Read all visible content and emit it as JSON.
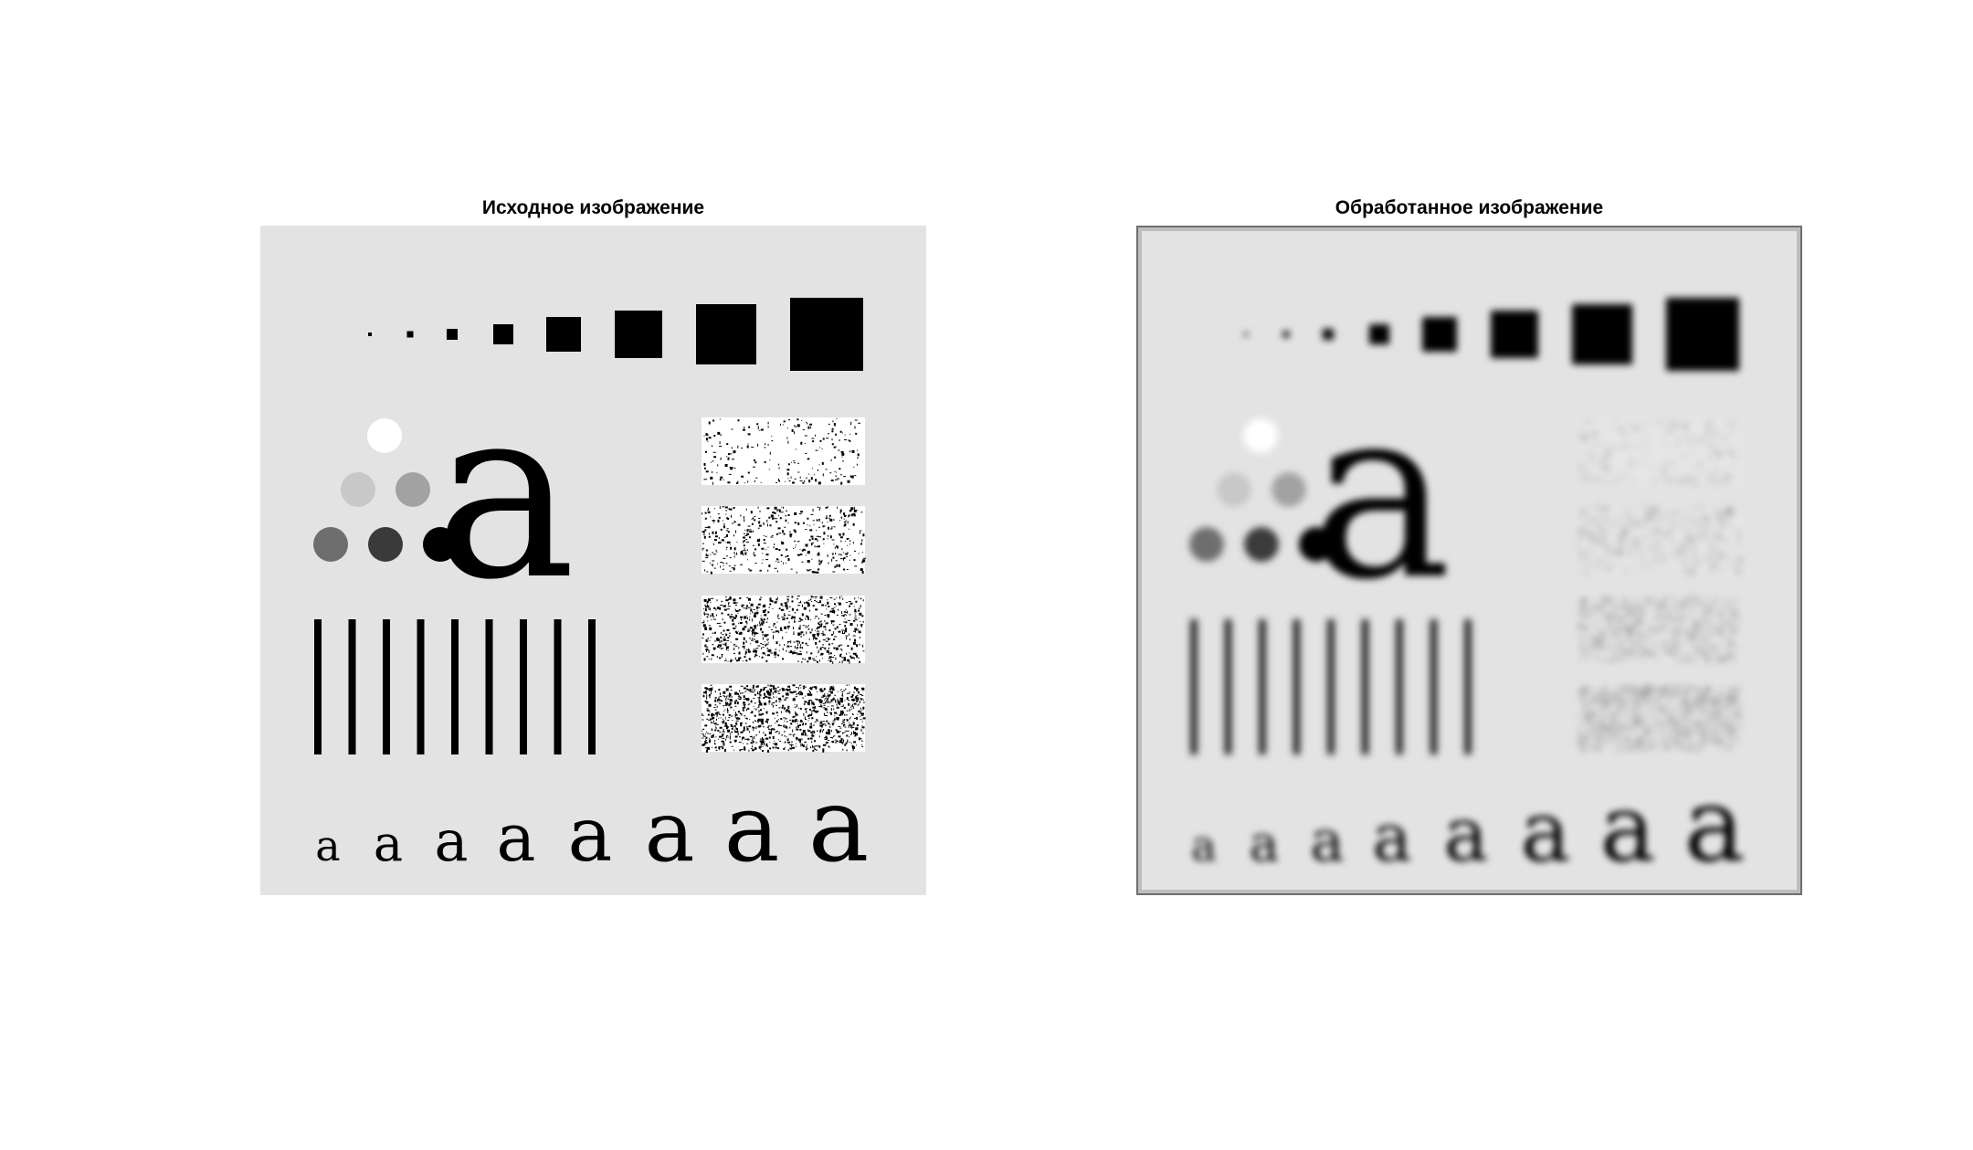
{
  "figure": {
    "panels": [
      {
        "title": "Исходное изображение"
      },
      {
        "title": "Обработанное изображение"
      }
    ],
    "test_pattern": {
      "glyph": "a",
      "circle_gray_levels": [
        "#ffffff",
        "#c8c8c8",
        "#a2a2a2",
        "#6e6e6e",
        "#3a3a3a",
        "#000000"
      ],
      "background_color": "#e3e3e3"
    }
  }
}
